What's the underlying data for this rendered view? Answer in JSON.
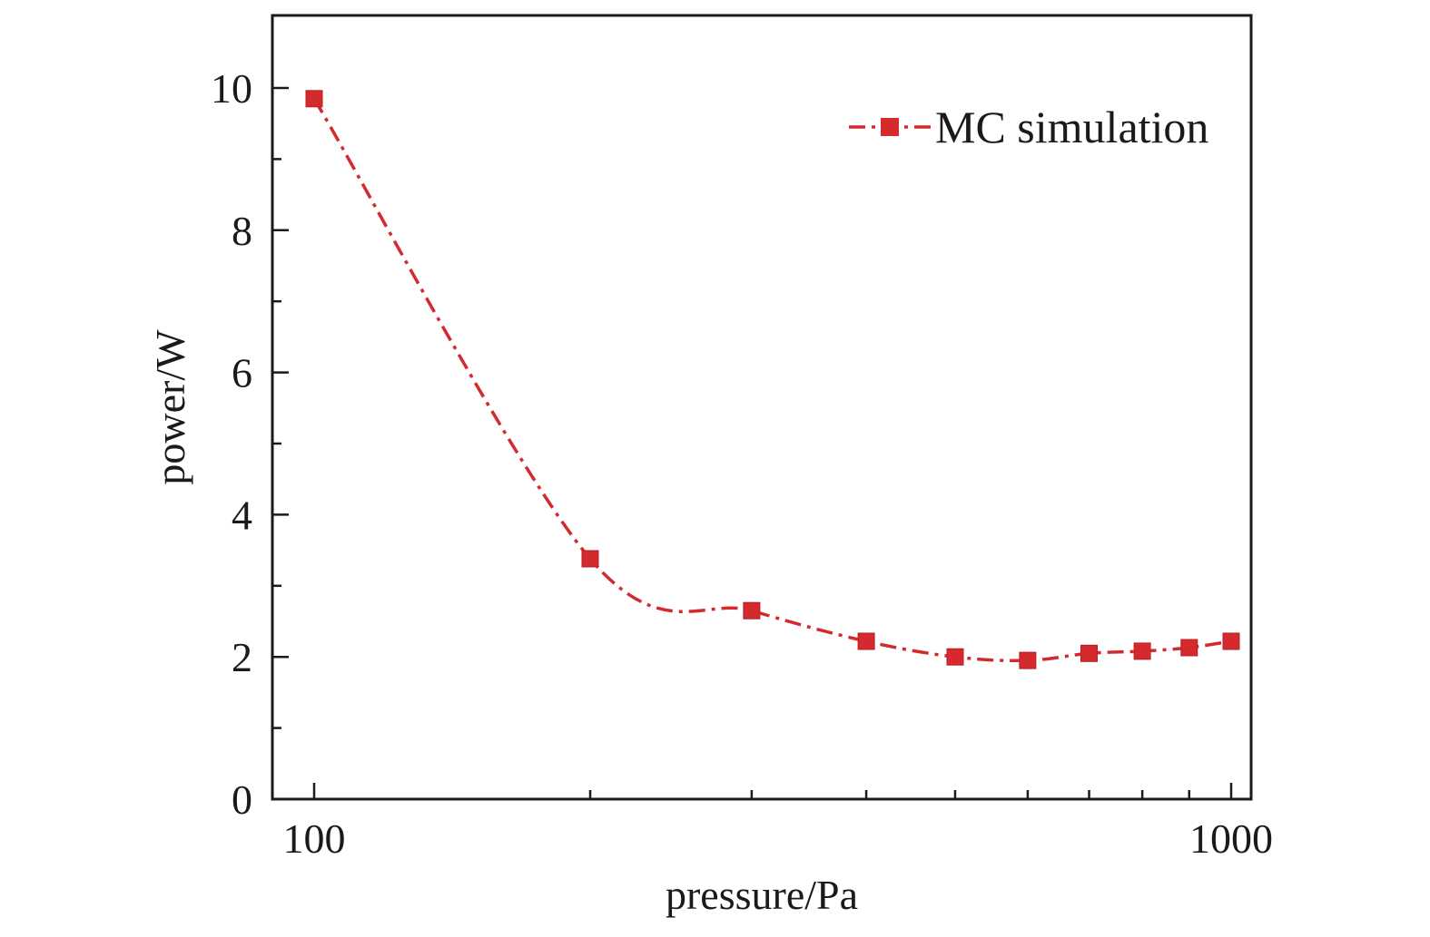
{
  "chart_data": {
    "type": "line",
    "xlabel": "pressure/Pa",
    "ylabel": "power/W",
    "xscale": "log",
    "xlim": [
      100,
      1000
    ],
    "ylim": [
      0,
      11
    ],
    "x_ticks": [
      100,
      1000
    ],
    "x_tick_labels": [
      "100",
      "1000"
    ],
    "x_minor_ticks": [
      200,
      300,
      400,
      500,
      600,
      700,
      800,
      900
    ],
    "y_ticks": [
      0,
      2,
      4,
      6,
      8,
      10
    ],
    "y_tick_labels": [
      "0",
      "2",
      "4",
      "6",
      "8",
      "10"
    ],
    "y_minor_ticks": [
      1,
      3,
      5,
      7,
      9
    ],
    "grid": false,
    "legend_position": "top-right",
    "series": [
      {
        "name": "MC simulation",
        "color": "#d42a2e",
        "line_style": "dash-dot",
        "marker": "square",
        "x": [
          100,
          200,
          300,
          400,
          500,
          600,
          700,
          800,
          900,
          1000
        ],
        "y": [
          9.85,
          3.38,
          2.65,
          2.22,
          2.0,
          1.95,
          2.05,
          2.08,
          2.13,
          2.22
        ]
      }
    ]
  }
}
